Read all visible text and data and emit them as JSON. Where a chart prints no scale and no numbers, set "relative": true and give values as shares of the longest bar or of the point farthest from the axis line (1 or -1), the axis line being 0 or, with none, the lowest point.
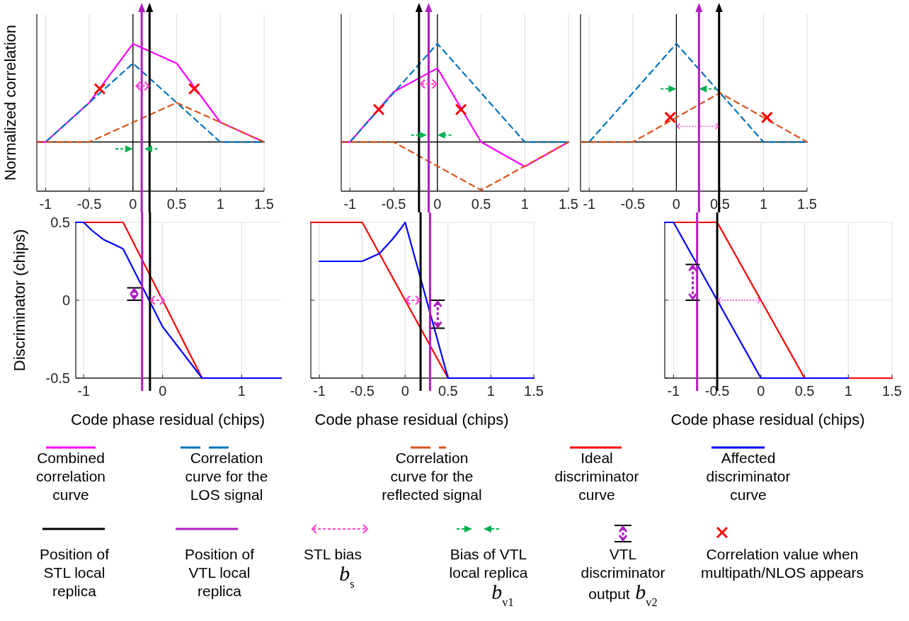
{
  "chart_data": [
    {
      "type": "line",
      "ylabel": "Normalized correlation",
      "relative": true,
      "xlim": [
        -1.1,
        1.5
      ],
      "xticks": [
        -1,
        -0.5,
        0,
        0.5,
        1,
        1.5
      ],
      "grid": "x",
      "legend": "bottom",
      "marker": "none",
      "series": [
        {
          "name": "Combined correlation curve",
          "color": "#ff00ff",
          "line_style": "solid",
          "x": [
            -1.1,
            -1,
            -0.5,
            0,
            0.5,
            1,
            1.5
          ],
          "values": [
            0,
            0,
            0.4,
            1,
            0.8,
            0.2,
            0
          ]
        },
        {
          "name": "Correlation curve for the LOS signal",
          "color": "#0072bd",
          "line_style": "dashed",
          "x": [
            -1.1,
            -1,
            0,
            1,
            1.5
          ],
          "values": [
            0,
            0,
            0.8,
            0,
            0
          ]
        },
        {
          "name": "Correlation curve for the reflected signal",
          "color": "#d95319",
          "line_style": "dashed",
          "x": [
            -1.1,
            -0.5,
            0.5,
            1.5
          ],
          "values": [
            0,
            0,
            0.4,
            0
          ]
        },
        {
          "name": "Correlation value when multipath/NLOS appears",
          "type": "scatter",
          "marker": "cross",
          "color": "#ff0000",
          "x": [
            -0.38,
            0.7
          ],
          "values": [
            0.54,
            0.54
          ]
        }
      ],
      "ref_lines": [
        {
          "axis": "x",
          "value": 0.19,
          "label": "Position of STL local replica",
          "color": "#000000"
        },
        {
          "axis": "x",
          "value": 0.1,
          "label": "Position of VTL local replica",
          "color": "#b01cc0"
        }
      ],
      "annotations": [
        "STL bias b$_{s}$",
        "Bias of VTL local replica b$_{v1}$",
        "VTL discriminator output b$_{v2}$"
      ]
    },
    {
      "type": "line",
      "relative": true,
      "xlim": [
        -1.1,
        1.5
      ],
      "xticks": [
        -1,
        -0.5,
        0,
        0.5,
        1,
        1.5
      ],
      "grid": "x",
      "marker": "none",
      "series": [
        {
          "color": "#ff00ff",
          "line_style": "solid",
          "x": [
            -1.1,
            -1,
            -0.5,
            0,
            0.5,
            1,
            1.5
          ],
          "values": [
            0,
            0,
            0.51,
            0.75,
            0,
            -0.25,
            0
          ]
        },
        {
          "color": "#0072bd",
          "line_style": "dashed",
          "x": [
            -1.1,
            -1,
            0,
            1,
            1.5
          ],
          "values": [
            0,
            0,
            1,
            0,
            0
          ]
        },
        {
          "color": "#d95319",
          "line_style": "dashed",
          "x": [
            -1.1,
            -0.5,
            0.5,
            1.5
          ],
          "values": [
            0,
            0,
            -0.49,
            0
          ]
        },
        {
          "type": "scatter",
          "marker": "cross",
          "color": "#ff0000",
          "x": [
            -0.67,
            0.27
          ],
          "values": [
            0.33,
            0.33
          ]
        }
      ],
      "ref_lines": [
        {
          "axis": "x",
          "value": -0.21,
          "color": "#000000"
        },
        {
          "axis": "x",
          "value": -0.1,
          "color": "#b01cc0"
        }
      ]
    },
    {
      "type": "line",
      "relative": true,
      "xlim": [
        -1.1,
        1.5
      ],
      "xticks": [
        -1,
        -0.5,
        0,
        0.5,
        1,
        1.5
      ],
      "grid": "x",
      "marker": "none",
      "series": [
        {
          "color": "#0072bd",
          "line_style": "dashed",
          "x": [
            -1.1,
            -1,
            0,
            1,
            1.5
          ],
          "values": [
            0,
            0,
            1,
            0,
            0
          ]
        },
        {
          "color": "#d95319",
          "line_style": "dashed",
          "x": [
            -1.1,
            -0.5,
            0.5,
            1.5
          ],
          "values": [
            0,
            0,
            0.5,
            0
          ]
        },
        {
          "type": "scatter",
          "marker": "cross",
          "color": "#ff0000",
          "x": [
            -0.07,
            1.04
          ],
          "values": [
            0.25,
            0.25
          ]
        }
      ],
      "ref_lines": [
        {
          "axis": "x",
          "value": 0.49,
          "color": "#000000"
        },
        {
          "axis": "x",
          "value": 0.26,
          "color": "#b01cc0"
        }
      ]
    },
    {
      "type": "line",
      "xlabel": "Code phase residual (chips)",
      "ylabel": "Discriminator (chips)",
      "xlim": [
        -1.1,
        1.5
      ],
      "xticks": [
        -1,
        0,
        1
      ],
      "ylim": [
        -0.5,
        0.5
      ],
      "yticks": [
        -0.5,
        0,
        0.5
      ],
      "grid": true,
      "legend": "bottom",
      "series": [
        {
          "name": "Ideal discriminator curve",
          "color": "#ff0000",
          "x": [
            -1.1,
            -0.5,
            0.5,
            1.5
          ],
          "values": [
            0.5,
            0.5,
            -0.5,
            -0.5
          ]
        },
        {
          "name": "Affected discriminator curve",
          "color": "#0000ff",
          "x": [
            -1.1,
            -1,
            -0.9,
            -0.75,
            -0.6,
            -0.5,
            0,
            0.5,
            1.5
          ],
          "values": [
            0.5,
            0.5,
            0.45,
            0.39,
            0.355,
            0.33,
            -0.17,
            -0.5,
            -0.5
          ]
        }
      ],
      "ref_lines": [
        {
          "axis": "x",
          "value": -0.16,
          "color": "#000000"
        },
        {
          "axis": "x",
          "value": -0.26,
          "color": "#b01cc0"
        }
      ]
    },
    {
      "type": "line",
      "xlabel": "Code phase residual (chips)",
      "xlim": [
        -1.1,
        1.5
      ],
      "xticks": [
        -1,
        -0.5,
        0,
        0.5,
        1,
        1.5
      ],
      "ylim": [
        -0.5,
        0.5
      ],
      "yticks": [
        -0.5,
        0,
        0.5
      ],
      "grid": true,
      "tick_labels": "x",
      "series": [
        {
          "color": "#ff0000",
          "x": [
            -1.1,
            -0.5,
            0.5,
            1.5
          ],
          "values": [
            0.5,
            0.5,
            -0.5,
            -0.5
          ]
        },
        {
          "color": "#0000ff",
          "x": [
            -1,
            -0.5,
            -0.3,
            -0.15,
            -0.05,
            0,
            0.5,
            1.5
          ],
          "values": [
            0.25,
            0.25,
            0.3,
            0.39,
            0.46,
            0.5,
            -0.5,
            -0.5
          ]
        }
      ],
      "ref_lines": [
        {
          "axis": "x",
          "value": 0.18,
          "color": "#000000"
        },
        {
          "axis": "x",
          "value": 0.29,
          "color": "#b01cc0"
        }
      ]
    },
    {
      "type": "line",
      "xlabel": "Code phase residual (chips)",
      "xlim": [
        -1.1,
        1.5
      ],
      "xticks": [
        -1,
        -0.5,
        0,
        0.5,
        1,
        1.5
      ],
      "ylim": [
        -0.5,
        0.5
      ],
      "yticks": [
        -0.5,
        0,
        0.5
      ],
      "grid": true,
      "tick_labels": "x",
      "series": [
        {
          "color": "#ff0000",
          "x": [
            -1.1,
            -0.5,
            0.5,
            1.5
          ],
          "values": [
            0.5,
            0.5,
            -0.5,
            -0.5
          ]
        },
        {
          "color": "#0000ff",
          "x": [
            -1.1,
            -1,
            0,
            1
          ],
          "values": [
            0.5,
            0.5,
            -0.5,
            -0.5
          ]
        }
      ],
      "ref_lines": [
        {
          "axis": "x",
          "value": -0.5,
          "color": "#000000"
        },
        {
          "axis": "x",
          "value": -0.73,
          "color": "#b01cc0"
        }
      ]
    }
  ]
}
